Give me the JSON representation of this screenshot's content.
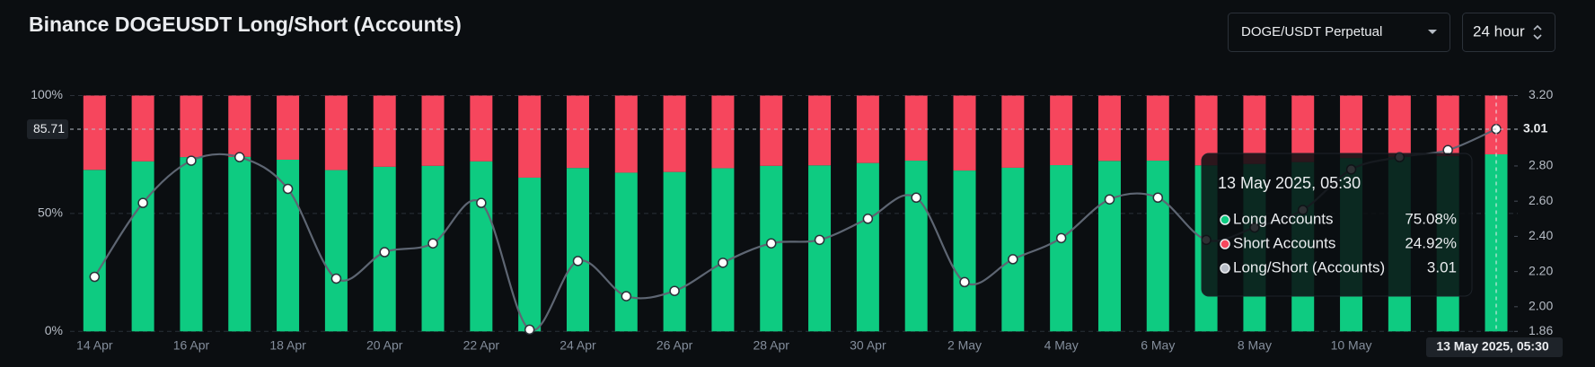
{
  "chart_data": {
    "type": "bar",
    "title": "Binance DOGEUSDT Long/Short (Accounts)",
    "categories": [
      "14 Apr",
      null,
      "16 Apr",
      null,
      "18 Apr",
      null,
      "20 Apr",
      null,
      "22 Apr",
      null,
      "24 Apr",
      null,
      "26 Apr",
      null,
      "28 Apr",
      null,
      "30 Apr",
      null,
      "2 May",
      null,
      "4 May",
      null,
      "6 May",
      null,
      "8 May",
      null,
      "10 May",
      null,
      null,
      "13 May 2025, 05:30"
    ],
    "series": [
      {
        "name": "Long Accounts",
        "color": "#0ecb81",
        "values": [
          68.5,
          72.1,
          73.9,
          74.0,
          72.8,
          68.4,
          69.8,
          70.2,
          72.1,
          65.2,
          69.3,
          67.3,
          67.6,
          69.2,
          70.2,
          70.4,
          71.4,
          72.4,
          68.2,
          69.4,
          70.5,
          72.3,
          72.4,
          70.4,
          71.0,
          71.8,
          73.5,
          74.0,
          74.3,
          75.08
        ],
        "value_labels": [
          null,
          null,
          null,
          null,
          null,
          null,
          null,
          null,
          null,
          null,
          null,
          null,
          null,
          null,
          null,
          null,
          null,
          null,
          null,
          null,
          null,
          null,
          null,
          null,
          null,
          null,
          null,
          null,
          null,
          "75.08%"
        ]
      },
      {
        "name": "Short Accounts",
        "color": "#f6465d",
        "values": [
          31.5,
          27.9,
          26.1,
          26.0,
          27.2,
          31.6,
          30.2,
          29.8,
          27.9,
          34.8,
          30.7,
          32.7,
          32.4,
          30.8,
          29.8,
          29.6,
          28.6,
          27.6,
          31.8,
          30.6,
          29.5,
          27.7,
          27.6,
          29.6,
          29.0,
          28.2,
          26.5,
          26.0,
          25.7,
          24.92
        ],
        "value_labels": [
          null,
          null,
          null,
          null,
          null,
          null,
          null,
          null,
          null,
          null,
          null,
          null,
          null,
          null,
          null,
          null,
          null,
          null,
          null,
          null,
          null,
          null,
          null,
          null,
          null,
          null,
          null,
          null,
          null,
          "24.92%"
        ]
      },
      {
        "name": "Long/Short (Accounts)",
        "type": "line",
        "axis": "y2",
        "color": "#5e6673",
        "values": [
          2.17,
          2.59,
          2.83,
          2.85,
          2.67,
          2.16,
          2.31,
          2.36,
          2.59,
          1.87,
          2.26,
          2.06,
          2.09,
          2.25,
          2.36,
          2.38,
          2.5,
          2.62,
          2.14,
          2.27,
          2.39,
          2.61,
          2.62,
          2.38,
          2.45,
          2.55,
          2.78,
          2.85,
          2.89,
          3.01
        ]
      }
    ],
    "ylim": [
      0,
      100
    ],
    "yticks": [
      {
        "value": 0,
        "label": "0%"
      },
      {
        "value": 50,
        "label": "50%"
      },
      {
        "value": 100,
        "label": "100%"
      }
    ],
    "y2lim": [
      1.86,
      3.2
    ],
    "y2ticks": [
      1.86,
      {
        "value": 2,
        "label": "2.00"
      },
      {
        "value": 2.2,
        "label": "2.20"
      },
      {
        "value": 2.4,
        "label": "2.40"
      },
      {
        "value": 2.6,
        "label": "2.60"
      },
      {
        "value": 2.8,
        "label": "2.80"
      },
      {
        "value": 3.2,
        "label": "3.20"
      }
    ],
    "grid": true,
    "crosshair_y": 85.71,
    "crosshair_y2": 3.01,
    "highlight_index": 29
  },
  "controls": {
    "symbol": "DOGE/USDT Perpetual",
    "period": "24 hour"
  }
}
